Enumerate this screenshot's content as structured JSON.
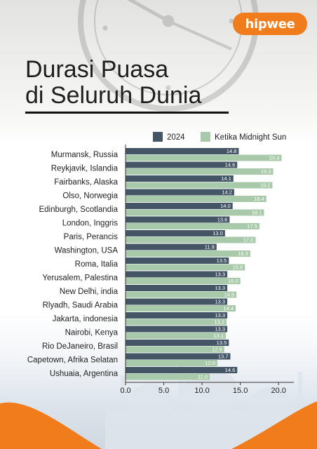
{
  "brand": {
    "logo_text": "hipwee",
    "accent": "#f07c1c"
  },
  "title": {
    "line1": "Durasi Puasa",
    "line2": "di Seluruh Dunia"
  },
  "chart_data": {
    "type": "bar",
    "orientation": "horizontal",
    "categories": [
      "Murmansk, Russia",
      "Reykjavik, Islandia",
      "Fairbanks, Alaska",
      "Olso, Norwegia",
      "Edinburgh, Scotlandia",
      "London, Inggris",
      "Paris, Perancis",
      "Washington, USA",
      "Roma, Italia",
      "Yerusalem, Palestina",
      "New Delhi, india",
      "Rlyadh, Saudi Arabia",
      "Jakarta, indonesia",
      "Nairobi, Kenya",
      "Rio DeJaneiro, Brasil",
      "Capetown, Afrika Selatan",
      "Ushuaia, Argentina"
    ],
    "series": [
      {
        "name": "2024",
        "color": "#445566",
        "values": [
          14.8,
          14.6,
          14.1,
          14.2,
          14.0,
          13.6,
          13.0,
          11.9,
          13.5,
          13.3,
          13.3,
          13.3,
          13.3,
          13.3,
          13.5,
          13.7,
          14.6
        ],
        "labels": [
          "14.8",
          "14.6",
          "14.1",
          "14.2",
          "14.0",
          "13.6",
          "13.0",
          "11.9",
          "13.5",
          "13.3",
          "13.3",
          "13.3",
          "13.3",
          "13.3",
          "13.5",
          "13.7",
          "14.6"
        ]
      },
      {
        "name": "Ketika Midnight Sun",
        "color": "#a9c9ab",
        "values": [
          20.4,
          19.3,
          19.2,
          18.4,
          18.1,
          17.5,
          17.0,
          16.3,
          15.6,
          15.0,
          14.5,
          14.4,
          13.2,
          13.1,
          12.9,
          12.0,
          11.0
        ],
        "labels": [
          "20.4",
          "19.3",
          "19.2",
          "18.4",
          "18.1",
          "17.5",
          "17.0",
          "16.3",
          "15.6",
          "15.0",
          "14.5",
          "14.4",
          "13.2",
          "13.1",
          "12.9",
          "12.0",
          "11.0"
        ]
      }
    ],
    "xlim": [
      0,
      22
    ],
    "xticks": [
      0,
      5,
      10,
      15,
      20
    ],
    "xtick_labels": [
      "0.0",
      "5.0",
      "10.0",
      "15.0",
      "20.0"
    ],
    "legend_position": "top",
    "grid": false
  }
}
